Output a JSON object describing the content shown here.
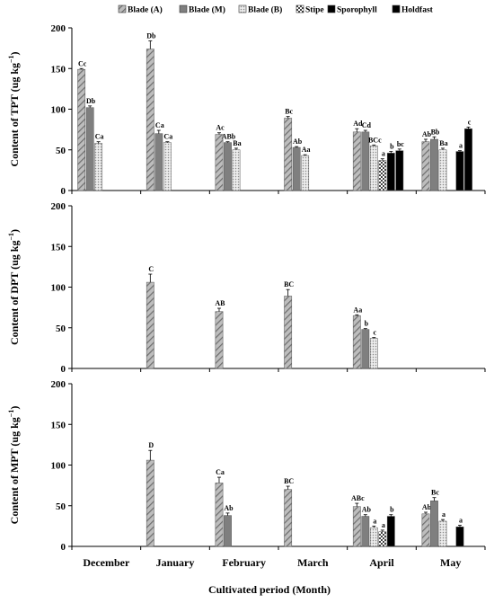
{
  "chart_data": {
    "type": "bar",
    "xlabel": "Cultivated period (Month)",
    "categories": [
      "December",
      "January",
      "February",
      "March",
      "April",
      "May"
    ],
    "legend": {
      "placement": "top",
      "entries": [
        "Blade (A)",
        "Blade (M)",
        "Blade (B)",
        "Stipe",
        "Sporophyll",
        "Holdfast"
      ]
    },
    "series_styles": [
      {
        "name": "Blade (A)",
        "fill": "#a6a6a6",
        "pattern": "diagonal-stripes"
      },
      {
        "name": "Blade (M)",
        "fill": "#7f7f7f",
        "pattern": "solid"
      },
      {
        "name": "Blade (B)",
        "fill": "#d9d9d9",
        "pattern": "dots"
      },
      {
        "name": "Stipe",
        "fill": "#ffffff",
        "pattern": "checker"
      },
      {
        "name": "Sporophyll",
        "fill": "#000000",
        "pattern": "solid"
      },
      {
        "name": "Holdfast",
        "fill": "#000000",
        "pattern": "solid"
      }
    ],
    "panels": [
      {
        "ylabel_main": "Content of TPT (ug kg",
        "ylabel_sup": "−1",
        "ylabel_end": ")",
        "ylim": [
          0,
          200
        ],
        "yticks": [
          "0",
          "50",
          "100",
          "150",
          "200"
        ],
        "bars": [
          {
            "month": 0,
            "series": 0,
            "value": 149,
            "err": 1,
            "label": "Cc"
          },
          {
            "month": 0,
            "series": 1,
            "value": 102,
            "err": 2,
            "label": "Db"
          },
          {
            "month": 0,
            "series": 2,
            "value": 58,
            "err": 2,
            "label": "Ca"
          },
          {
            "month": 1,
            "series": 0,
            "value": 174,
            "err": 10,
            "label": "Db"
          },
          {
            "month": 1,
            "series": 1,
            "value": 70,
            "err": 4,
            "label": "Ca"
          },
          {
            "month": 1,
            "series": 2,
            "value": 59,
            "err": 1,
            "label": "Ca"
          },
          {
            "month": 2,
            "series": 0,
            "value": 69,
            "err": 2,
            "label": "Ac"
          },
          {
            "month": 2,
            "series": 1,
            "value": 59,
            "err": 1,
            "label": "ABb"
          },
          {
            "month": 2,
            "series": 2,
            "value": 50,
            "err": 2,
            "label": "Ba"
          },
          {
            "month": 3,
            "series": 0,
            "value": 89,
            "err": 2,
            "label": "Bc"
          },
          {
            "month": 3,
            "series": 1,
            "value": 53,
            "err": 1,
            "label": "Ab"
          },
          {
            "month": 3,
            "series": 2,
            "value": 43,
            "err": 1,
            "label": "Aa"
          },
          {
            "month": 4,
            "series": 0,
            "value": 72,
            "err": 4,
            "label": "Ad"
          },
          {
            "month": 4,
            "series": 1,
            "value": 72,
            "err": 2,
            "label": "Cd"
          },
          {
            "month": 4,
            "series": 2,
            "value": 55,
            "err": 1,
            "label": "BCc"
          },
          {
            "month": 4,
            "series": 3,
            "value": 37,
            "err": 2,
            "label": "a"
          },
          {
            "month": 4,
            "series": 4,
            "value": 46,
            "err": 2,
            "label": "b"
          },
          {
            "month": 4,
            "series": 5,
            "value": 49,
            "err": 2,
            "label": "bc"
          },
          {
            "month": 5,
            "series": 0,
            "value": 60,
            "err": 3,
            "label": "Ab"
          },
          {
            "month": 5,
            "series": 1,
            "value": 63,
            "err": 3,
            "label": "Bb"
          },
          {
            "month": 5,
            "series": 2,
            "value": 50,
            "err": 2,
            "label": "Ba"
          },
          {
            "month": 5,
            "series": 4,
            "value": 48,
            "err": 1,
            "label": "a"
          },
          {
            "month": 5,
            "series": 5,
            "value": 76,
            "err": 2,
            "label": "c"
          }
        ]
      },
      {
        "ylabel_main": "Content of DPT (ug kg",
        "ylabel_sup": "−1",
        "ylabel_end": ")",
        "ylim": [
          0,
          200
        ],
        "yticks": [
          "0",
          "50",
          "100",
          "150",
          "200"
        ],
        "bars": [
          {
            "month": 1,
            "series": 0,
            "value": 106,
            "err": 10,
            "label": "C"
          },
          {
            "month": 2,
            "series": 0,
            "value": 70,
            "err": 4,
            "label": "AB"
          },
          {
            "month": 3,
            "series": 0,
            "value": 89,
            "err": 8,
            "label": "BC"
          },
          {
            "month": 4,
            "series": 0,
            "value": 65,
            "err": 1,
            "label": "Aa"
          },
          {
            "month": 4,
            "series": 1,
            "value": 48,
            "err": 1,
            "label": "b"
          },
          {
            "month": 4,
            "series": 2,
            "value": 37,
            "err": 1,
            "label": "c"
          }
        ]
      },
      {
        "ylabel_main": "Content of MPT (ug kg",
        "ylabel_sup": "−1",
        "ylabel_end": ")",
        "ylim": [
          0,
          200
        ],
        "yticks": [
          "0",
          "50",
          "100",
          "150",
          "200"
        ],
        "bars": [
          {
            "month": 1,
            "series": 0,
            "value": 106,
            "err": 12,
            "label": "D"
          },
          {
            "month": 2,
            "series": 0,
            "value": 78,
            "err": 7,
            "label": "Ca"
          },
          {
            "month": 2,
            "series": 1,
            "value": 38,
            "err": 3,
            "label": "Ab"
          },
          {
            "month": 3,
            "series": 0,
            "value": 70,
            "err": 4,
            "label": "BC"
          },
          {
            "month": 4,
            "series": 0,
            "value": 49,
            "err": 4,
            "label": "ABc"
          },
          {
            "month": 4,
            "series": 1,
            "value": 37,
            "err": 2,
            "label": "Ab"
          },
          {
            "month": 4,
            "series": 2,
            "value": 23,
            "err": 2,
            "label": "a"
          },
          {
            "month": 4,
            "series": 3,
            "value": 18,
            "err": 2,
            "label": "a"
          },
          {
            "month": 4,
            "series": 4,
            "value": 37,
            "err": 2,
            "label": "b"
          },
          {
            "month": 5,
            "series": 0,
            "value": 40,
            "err": 2,
            "label": "Ab"
          },
          {
            "month": 5,
            "series": 1,
            "value": 56,
            "err": 4,
            "label": "Bc"
          },
          {
            "month": 5,
            "series": 2,
            "value": 31,
            "err": 2,
            "label": "a"
          },
          {
            "month": 5,
            "series": 4,
            "value": 24,
            "err": 2,
            "label": "a"
          }
        ]
      }
    ]
  }
}
